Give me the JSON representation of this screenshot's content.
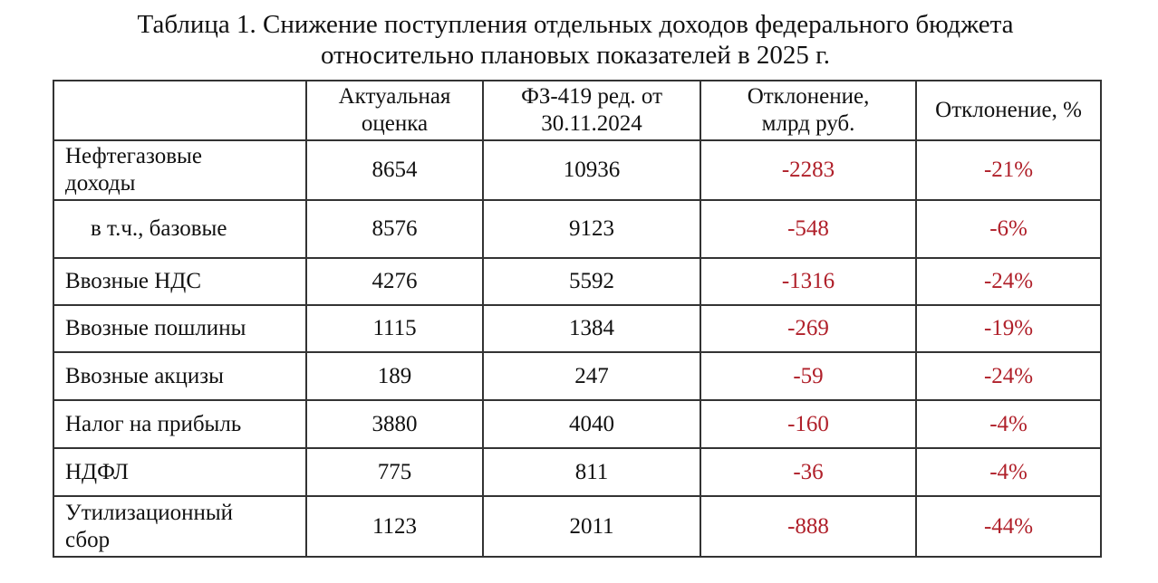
{
  "title_line1": "Таблица 1. Снижение поступления отдельных доходов федерального бюджета",
  "title_line2": "относительно плановых показателей в 2025 г.",
  "colors": {
    "negative": "#b0202a"
  },
  "headers": [
    "",
    "Актуальная оценка",
    "ФЗ-419 ред. от 30.11.2024",
    "Отклонение, млрд руб.",
    "Отклонение, %"
  ],
  "rows": [
    {
      "label": "Нефтегазовые доходы",
      "actual": "8654",
      "plan": "10936",
      "dev": "-2283",
      "pct": "-21%"
    },
    {
      "label": "в т.ч., базовые",
      "actual": "8576",
      "plan": "9123",
      "dev": "-548",
      "pct": "-6%"
    },
    {
      "label": "Ввозные НДС",
      "actual": "4276",
      "plan": "5592",
      "dev": "-1316",
      "pct": "-24%"
    },
    {
      "label": "Ввозные пошлины",
      "actual": "1115",
      "plan": "1384",
      "dev": "-269",
      "pct": "-19%"
    },
    {
      "label": "Ввозные акцизы",
      "actual": "189",
      "plan": "247",
      "dev": "-59",
      "pct": "-24%"
    },
    {
      "label": "Налог на прибыль",
      "actual": "3880",
      "plan": "4040",
      "dev": "-160",
      "pct": "-4%"
    },
    {
      "label": "НДФЛ",
      "actual": "775",
      "plan": "811",
      "dev": "-36",
      "pct": "-4%"
    },
    {
      "label": "Утилизационный сбор",
      "actual": "1123",
      "plan": "2011",
      "dev": "-888",
      "pct": "-44%"
    }
  ]
}
